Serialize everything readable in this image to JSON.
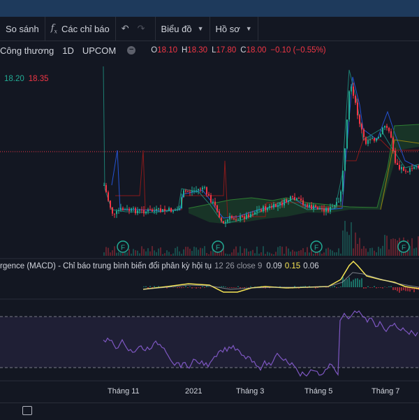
{
  "toolbar": {
    "compare_label": "So sánh",
    "indicators_label": "Các chỉ báo",
    "chart_type_label": "Biểu đồ",
    "profile_label": "Hồ sơ"
  },
  "symbol": {
    "name": "Công thương",
    "interval": "1D",
    "exchange": "UPCOM",
    "o_label": "O",
    "o": "18.10",
    "h_label": "H",
    "h": "18.30",
    "l_label": "L",
    "l": "17.80",
    "c_label": "C",
    "c": "18.00",
    "change": "−0.10 (−0.55%)",
    "bid": "18.20",
    "ask": "18.35"
  },
  "macd": {
    "label": "rgence (MACD) - Chỉ báo trung bình biến đổi phân kỳ hội tụ",
    "params": "12 26 close 9",
    "v1": "0.09",
    "v2": "0.15",
    "v3": "0.06"
  },
  "xaxis": {
    "labels": [
      "Tháng 11",
      "2021",
      "Tháng 3",
      "Tháng 5",
      "Tháng 7"
    ]
  },
  "markers": {
    "label": "F"
  },
  "colors": {
    "up": "#22ab94",
    "down": "#f23645",
    "macd_line": "#f7e654",
    "rsi_line": "#7e57c2",
    "background": "#131722"
  }
}
